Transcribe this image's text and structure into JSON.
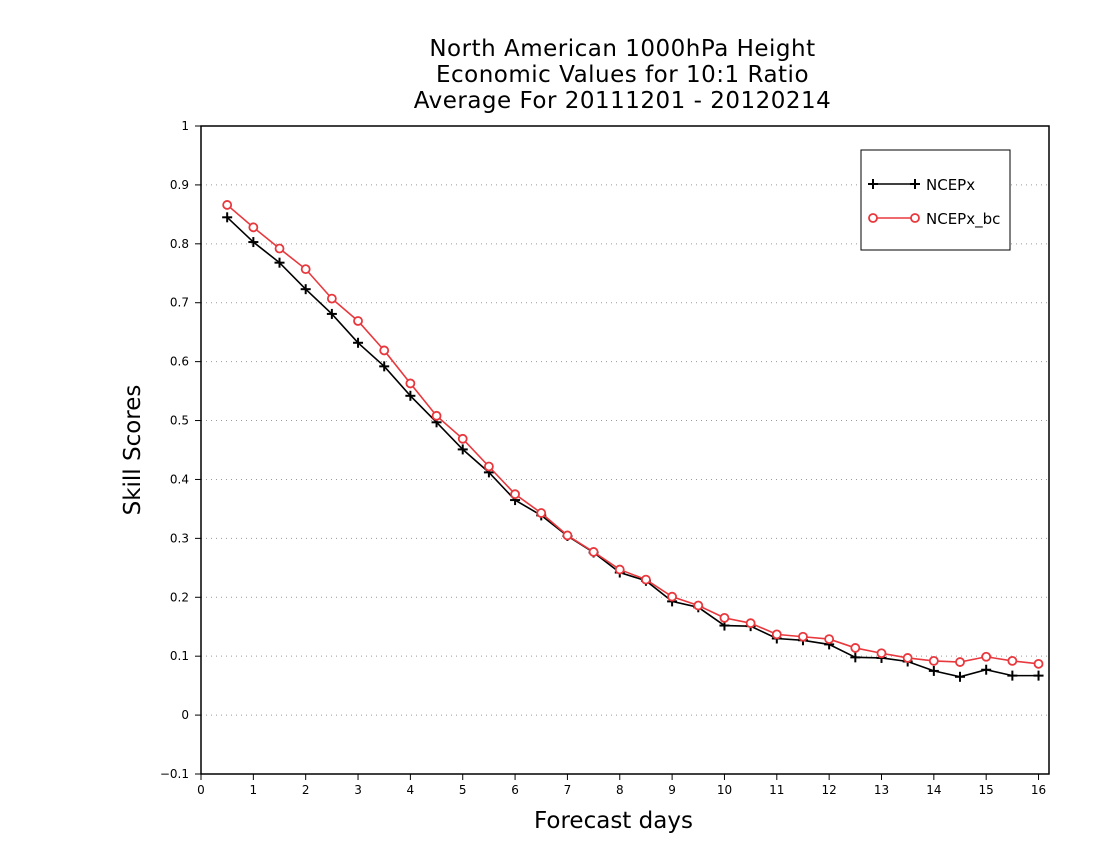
{
  "chart_data": {
    "type": "line",
    "title": [
      "North American 1000hPa Height",
      "Economic Values for 10:1 Ratio",
      "Average For 20111201 - 20120214"
    ],
    "xlabel": "Forecast days",
    "ylabel": "Skill Scores",
    "xlim": [
      0,
      16.2
    ],
    "ylim": [
      -0.1,
      1
    ],
    "xticks": [
      0,
      1,
      2,
      3,
      4,
      5,
      6,
      7,
      8,
      9,
      10,
      11,
      12,
      13,
      14,
      15,
      16
    ],
    "xtick_labels": [
      "0",
      "1",
      "2",
      "3",
      "4",
      "5",
      "6",
      "7",
      "8",
      "9",
      "10",
      "11",
      "12",
      "13",
      "14",
      "15",
      "16"
    ],
    "yticks": [
      -0.1,
      0,
      0.1,
      0.2,
      0.3,
      0.4,
      0.5,
      0.6,
      0.7,
      0.8,
      0.9,
      1
    ],
    "ytick_labels": [
      "−0.1",
      "0",
      "0.1",
      "0.2",
      "0.3",
      "0.4",
      "0.5",
      "0.6",
      "0.7",
      "0.8",
      "0.9",
      "1"
    ],
    "grid": "horizontal-dotted",
    "legend_position": "top-right",
    "x": [
      0.5,
      1,
      1.5,
      2,
      2.5,
      3,
      3.5,
      4,
      4.5,
      5,
      5.5,
      6,
      6.5,
      7,
      7.5,
      8,
      8.5,
      9,
      9.5,
      10,
      10.5,
      11,
      11.5,
      12,
      12.5,
      13,
      13.5,
      14,
      14.5,
      15,
      15.5,
      16
    ],
    "series": [
      {
        "name": "NCEPx",
        "color": "#000000",
        "marker": "plus",
        "values": [
          0.845,
          0.803,
          0.768,
          0.723,
          0.681,
          0.632,
          0.592,
          0.542,
          0.497,
          0.451,
          0.412,
          0.365,
          0.339,
          0.304,
          0.276,
          0.242,
          0.228,
          0.193,
          0.183,
          0.152,
          0.151,
          0.13,
          0.127,
          0.12,
          0.098,
          0.097,
          0.091,
          0.075,
          0.065,
          0.077,
          0.067,
          0.067
        ]
      },
      {
        "name": "NCEPx_bc",
        "color": "#e8383d",
        "marker": "circle",
        "values": [
          0.866,
          0.828,
          0.792,
          0.757,
          0.707,
          0.669,
          0.619,
          0.563,
          0.508,
          0.469,
          0.422,
          0.375,
          0.343,
          0.305,
          0.277,
          0.247,
          0.23,
          0.201,
          0.186,
          0.165,
          0.156,
          0.137,
          0.133,
          0.129,
          0.114,
          0.105,
          0.097,
          0.092,
          0.09,
          0.099,
          0.092,
          0.087
        ]
      }
    ]
  }
}
